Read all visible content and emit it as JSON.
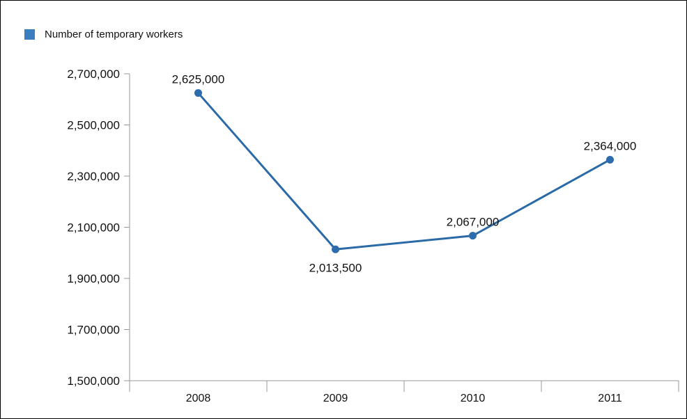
{
  "chart_data": {
    "type": "line",
    "categories": [
      "2008",
      "2009",
      "2010",
      "2011"
    ],
    "series": [
      {
        "name": "Number of temporary workers",
        "values": [
          2625000,
          2013500,
          2067000,
          2364000
        ],
        "data_labels": [
          "2,625,000",
          "2,013,500",
          "2,067,000",
          "2,364,000"
        ],
        "color": "#2a6aa7",
        "marker_color": "#2d6cad"
      }
    ],
    "y_ticks": [
      1500000,
      1700000,
      1900000,
      2100000,
      2300000,
      2500000,
      2700000
    ],
    "y_tick_labels": [
      "1,500,000",
      "1,700,000",
      "1,900,000",
      "2,100,000",
      "2,300,000",
      "2,500,000",
      "2,700,000"
    ],
    "ylim": [
      1500000,
      2700000
    ],
    "grid": false,
    "legend_position": "top-left",
    "legend_swatch_color": "#3a7ec0",
    "axis_color": "#999999"
  }
}
